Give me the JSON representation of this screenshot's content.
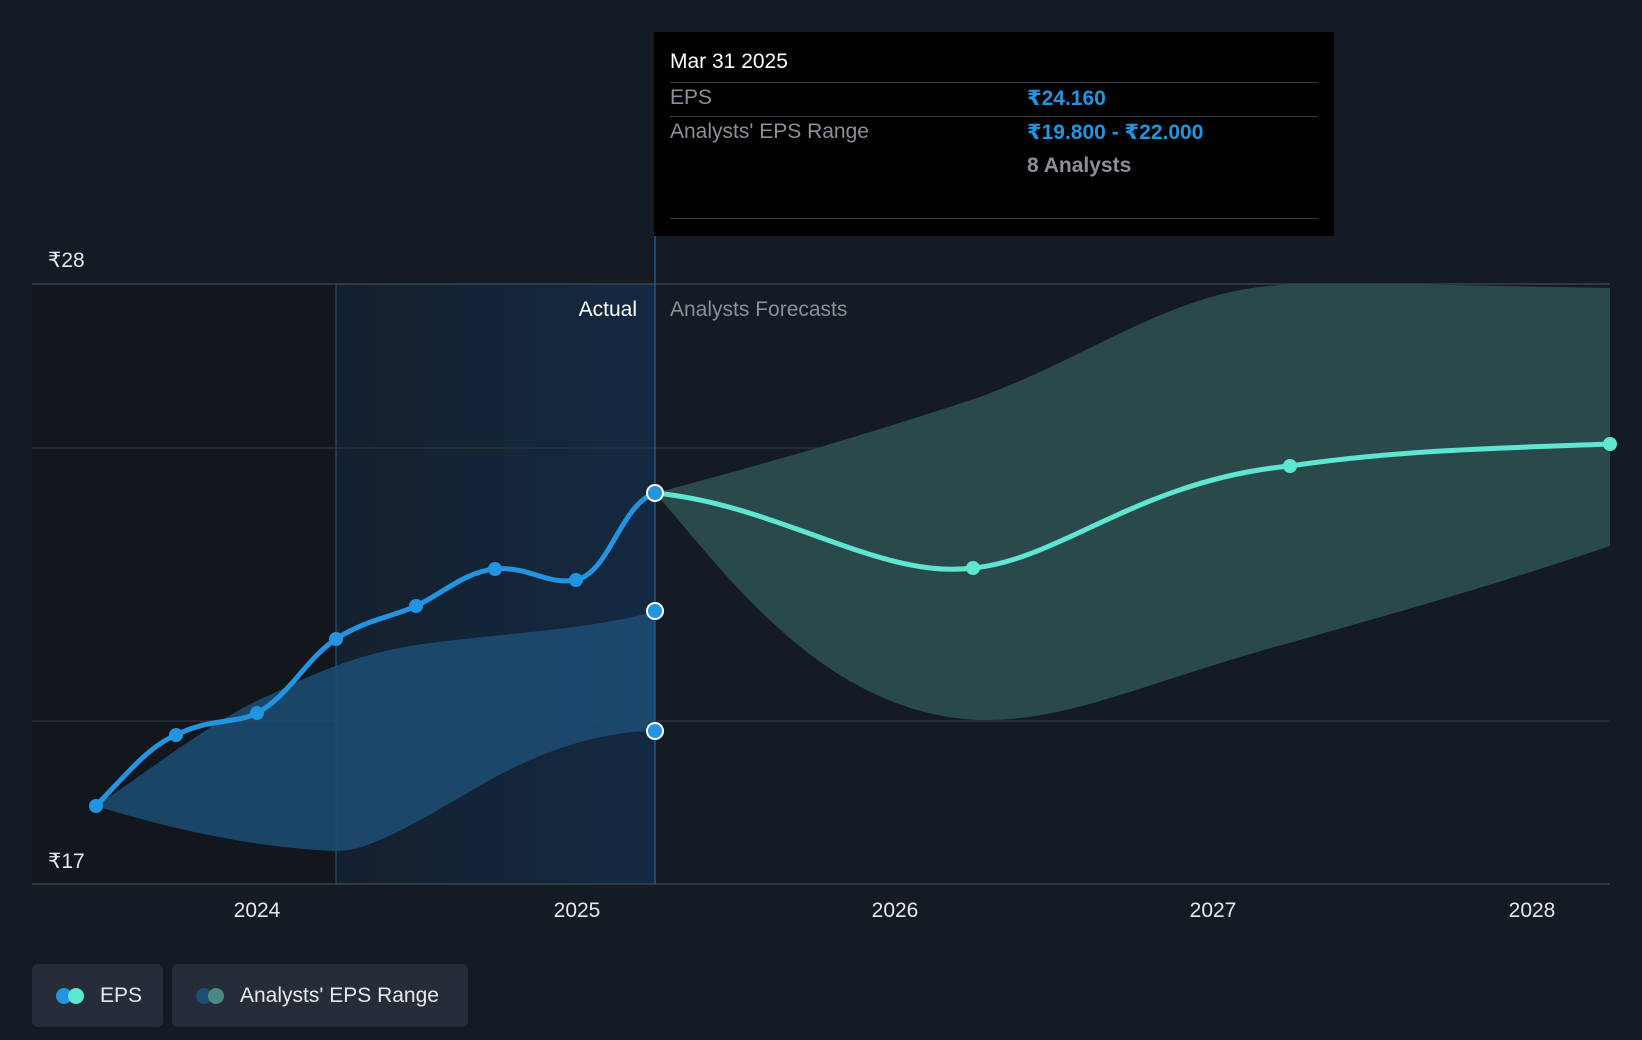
{
  "chart_data": {
    "type": "line",
    "y_axis_labels": [
      "₹28",
      "₹17"
    ],
    "x_ticks": [
      "2024",
      "2025",
      "2026",
      "2027",
      "2028"
    ],
    "region_labels": {
      "actual": "Actual",
      "forecast": "Analysts Forecasts"
    },
    "eps_actual": [
      {
        "x": "2023-07-01",
        "y": 18.0
      },
      {
        "x": "2023-10-01",
        "y": 19.3
      },
      {
        "x": "2024-01-01",
        "y": 19.6
      },
      {
        "x": "2024-04-01",
        "y": 21.0
      },
      {
        "x": "2024-07-01",
        "y": 21.6
      },
      {
        "x": "2024-10-01",
        "y": 22.3
      },
      {
        "x": "2025-01-01",
        "y": 22.1
      },
      {
        "x": "2025-03-31",
        "y": 24.16
      }
    ],
    "eps_forecast": [
      {
        "x": "2025-03-31",
        "y": 24.16
      },
      {
        "x": "2026-03-31",
        "y": 22.75
      },
      {
        "x": "2027-03-31",
        "y": 24.7
      },
      {
        "x": "2028-03-31",
        "y": 25.1
      }
    ],
    "actual_range_band": [
      {
        "x": "2023-07-01",
        "low": 18.0,
        "high": 18.0
      },
      {
        "x": "2024-04-01",
        "low": 17.6,
        "high": 20.8
      },
      {
        "x": "2025-03-31",
        "low": 19.8,
        "high": 22.0
      }
    ],
    "forecast_range_band": [
      {
        "x": "2025-03-31",
        "low": 24.16,
        "high": 24.16
      },
      {
        "x": "2026-03-31",
        "low": 20.0,
        "high": 26.0
      },
      {
        "x": "2027-03-31",
        "low": 21.4,
        "high": 28.0
      },
      {
        "x": "2028-03-31",
        "low": 23.2,
        "high": 27.9
      }
    ],
    "ylim": [
      17,
      28
    ],
    "colors": {
      "eps_actual": "#2394df",
      "eps_forecast": "#5ee6d0",
      "actual_band": "#1d4e74",
      "forecast_band": "#2b4d4f",
      "tooltip_value": "#2394df"
    }
  },
  "tooltip": {
    "date": "Mar 31 2025",
    "eps_label": "EPS",
    "eps_value": "₹24.160",
    "range_label": "Analysts' EPS Range",
    "range_low": "₹19.800",
    "range_sep": "-",
    "range_high": "₹22.000",
    "analysts": "8 Analysts"
  },
  "legend": [
    {
      "label": "EPS",
      "colors": [
        "#2394df",
        "#5ee6d0"
      ]
    },
    {
      "label": "Analysts' EPS Range",
      "colors": [
        "#1d4e74",
        "#2b4d4f"
      ]
    }
  ]
}
